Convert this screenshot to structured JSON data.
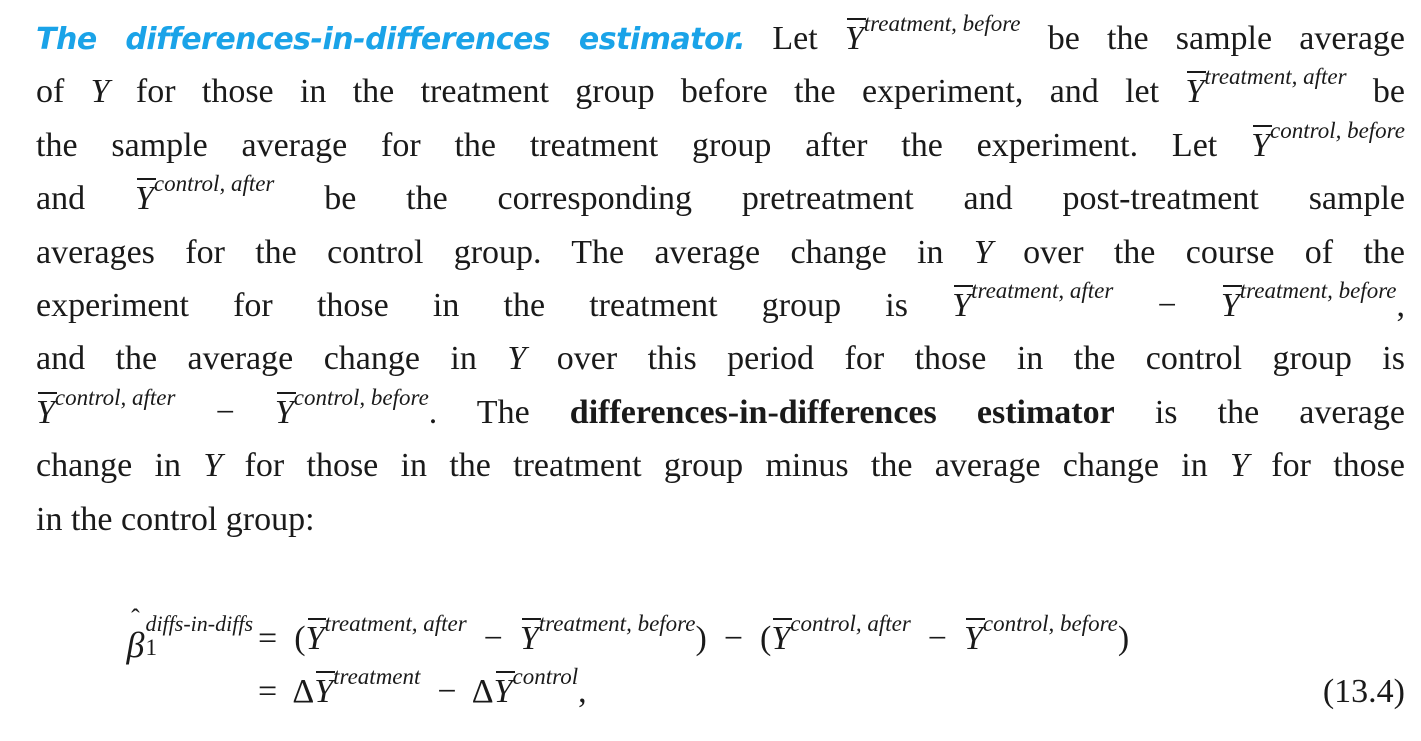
{
  "paragraph": {
    "lines": [
      [
        {
          "h": "The differences-in-differences estimator."
        },
        {
          "t": " Let "
        },
        {
          "y": "treatment, before"
        },
        {
          "t": " be the sample average"
        }
      ],
      [
        {
          "t": "of "
        },
        {
          "i": "Y"
        },
        {
          "t": " for those in the treatment group before the experiment, and let "
        },
        {
          "y": "treatment, after"
        },
        {
          "t": " be"
        }
      ],
      [
        {
          "t": "the sample average for the treatment group after the experiment. Let "
        },
        {
          "y": "control, before"
        }
      ],
      [
        {
          "t": "and "
        },
        {
          "y": "control, after"
        },
        {
          "t": " be the corresponding pretreatment and post-treatment sample"
        }
      ],
      [
        {
          "t": "averages for the control group. The average change in "
        },
        {
          "i": "Y"
        },
        {
          "t": " over the course of the"
        }
      ],
      [
        {
          "t": "experiment for those in the treatment group is "
        },
        {
          "y": "treatment, after"
        },
        {
          "t": " − "
        },
        {
          "y": "treatment, before"
        },
        {
          "t": ","
        }
      ],
      [
        {
          "t": "and the average change in "
        },
        {
          "i": "Y"
        },
        {
          "t": " over this period for those in the control group is"
        }
      ],
      [
        {
          "y": "control, after"
        },
        {
          "t": " − "
        },
        {
          "y": "control, before"
        },
        {
          "t": ". The "
        },
        {
          "b": "differences-in-differences estimator"
        },
        {
          "t": " is the average"
        }
      ],
      [
        {
          "t": "change in "
        },
        {
          "i": "Y"
        },
        {
          "t": " for those in the treatment group minus the average change in "
        },
        {
          "i": "Y"
        },
        {
          "t": " for those"
        }
      ],
      [
        {
          "t": "in the control group:"
        }
      ]
    ]
  },
  "equation": {
    "beta": "β",
    "hat": "ˆ",
    "beta_sub": "1",
    "beta_sup": "diffs-in-diffs",
    "Y": "Y",
    "eq": "=",
    "minus": "−",
    "lparen": "(",
    "rparen": ")",
    "delta": "Δ",
    "comma": ",",
    "sup_ta": "treatment, after",
    "sup_tb": "treatment, before",
    "sup_ca": "control, after",
    "sup_cb": "control, before",
    "sup_t": "treatment",
    "sup_c": "control",
    "number": "(13.4)"
  }
}
